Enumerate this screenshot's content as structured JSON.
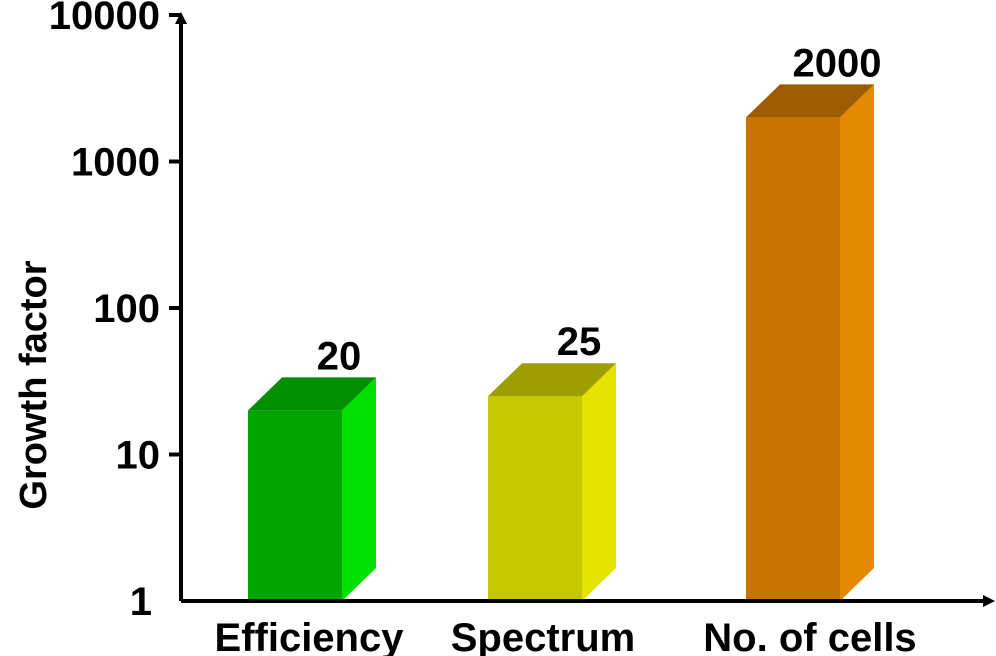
{
  "chart_data": {
    "type": "bar",
    "style": "3d",
    "y_scale": "log",
    "ylim": [
      1,
      10000
    ],
    "ylabel": "Growth factor",
    "xlabel": "",
    "title": "",
    "grid": false,
    "yticks": [
      1,
      10,
      100,
      1000,
      10000
    ],
    "ytick_labels": [
      "1",
      "10",
      "100",
      "1000",
      "10000"
    ],
    "categories": [
      "Efficiency",
      "Spectrum",
      "No. of cells"
    ],
    "values": [
      20,
      25,
      2000
    ],
    "data_labels": [
      "20",
      "25",
      "2000"
    ],
    "colors": [
      {
        "front": "#00a600",
        "side": "#00e000",
        "top": "#008f00"
      },
      {
        "front": "#c8c800",
        "side": "#e4e400",
        "top": "#9e9e00"
      },
      {
        "front": "#c87400",
        "side": "#e48a00",
        "top": "#9e5c00"
      }
    ]
  }
}
